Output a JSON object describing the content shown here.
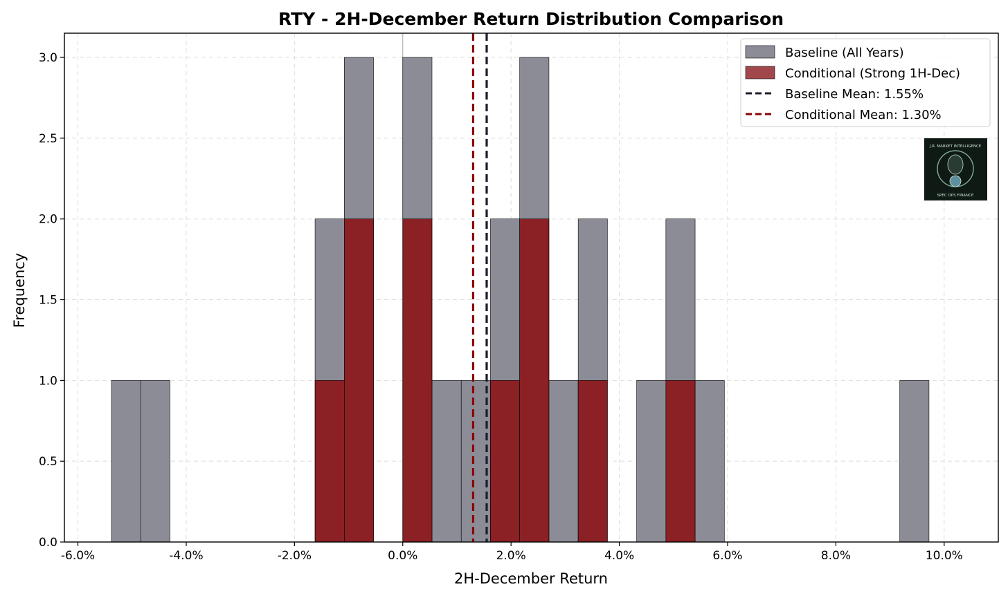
{
  "chart_data": {
    "type": "bar",
    "title": "RTY - 2H-December Return Distribution Comparison",
    "xlabel": "2H-December Return",
    "ylabel": "Frequency",
    "xlim": [
      -6.25,
      11.0
    ],
    "ylim": [
      0,
      3.15
    ],
    "xticks": [
      -6,
      -4,
      -2,
      0,
      2,
      4,
      6,
      8,
      10
    ],
    "xtick_labels": [
      "-6.0%",
      "-4.0%",
      "-2.0%",
      "0.0%",
      "2.0%",
      "4.0%",
      "6.0%",
      "8.0%",
      "10.0%"
    ],
    "yticks": [
      0,
      0.5,
      1,
      1.5,
      2,
      2.5,
      3
    ],
    "ytick_labels": [
      "0.0",
      "0.5",
      "1.0",
      "1.5",
      "2.0",
      "2.5",
      "3.0"
    ],
    "grid": true,
    "legend_position": "top-right",
    "series": [
      {
        "name": "Baseline (All Years)",
        "color": "#8c8c96",
        "bins": [
          {
            "x0": -5.38,
            "x1": -4.84,
            "count": 1
          },
          {
            "x0": -4.84,
            "x1": -4.3,
            "count": 1
          },
          {
            "x0": -1.62,
            "x1": -1.08,
            "count": 2
          },
          {
            "x0": -1.08,
            "x1": -0.54,
            "count": 3
          },
          {
            "x0": 0.0,
            "x1": 0.54,
            "count": 3
          },
          {
            "x0": 0.54,
            "x1": 1.08,
            "count": 1
          },
          {
            "x0": 1.08,
            "x1": 1.62,
            "count": 1
          },
          {
            "x0": 1.62,
            "x1": 2.16,
            "count": 2
          },
          {
            "x0": 2.16,
            "x1": 2.7,
            "count": 3
          },
          {
            "x0": 2.7,
            "x1": 3.24,
            "count": 1
          },
          {
            "x0": 3.24,
            "x1": 3.78,
            "count": 2
          },
          {
            "x0": 4.32,
            "x1": 4.86,
            "count": 1
          },
          {
            "x0": 4.86,
            "x1": 5.4,
            "count": 2
          },
          {
            "x0": 5.4,
            "x1": 5.94,
            "count": 1
          },
          {
            "x0": 9.18,
            "x1": 9.72,
            "count": 1
          }
        ]
      },
      {
        "name": "Conditional (Strong 1H-Dec)",
        "color": "#8b1a1f",
        "bins": [
          {
            "x0": -1.62,
            "x1": -1.08,
            "count": 1
          },
          {
            "x0": -1.08,
            "x1": -0.54,
            "count": 2
          },
          {
            "x0": 0.0,
            "x1": 0.54,
            "count": 2
          },
          {
            "x0": 1.62,
            "x1": 2.16,
            "count": 1
          },
          {
            "x0": 2.16,
            "x1": 2.7,
            "count": 2
          },
          {
            "x0": 3.24,
            "x1": 3.78,
            "count": 1
          },
          {
            "x0": 4.86,
            "x1": 5.4,
            "count": 1
          }
        ]
      }
    ],
    "mean_lines": [
      {
        "name": "Baseline Mean: 1.55%",
        "x": 1.55,
        "color": "#1c1c2e"
      },
      {
        "name": "Conditional Mean: 1.30%",
        "x": 1.3,
        "color": "#8b0000"
      }
    ],
    "reference_line": {
      "x": 0
    }
  },
  "logo": {
    "text_top": "J.R. MARKET INTELLIGENCE",
    "text_bottom": "SPEC OPS FINANCE"
  }
}
